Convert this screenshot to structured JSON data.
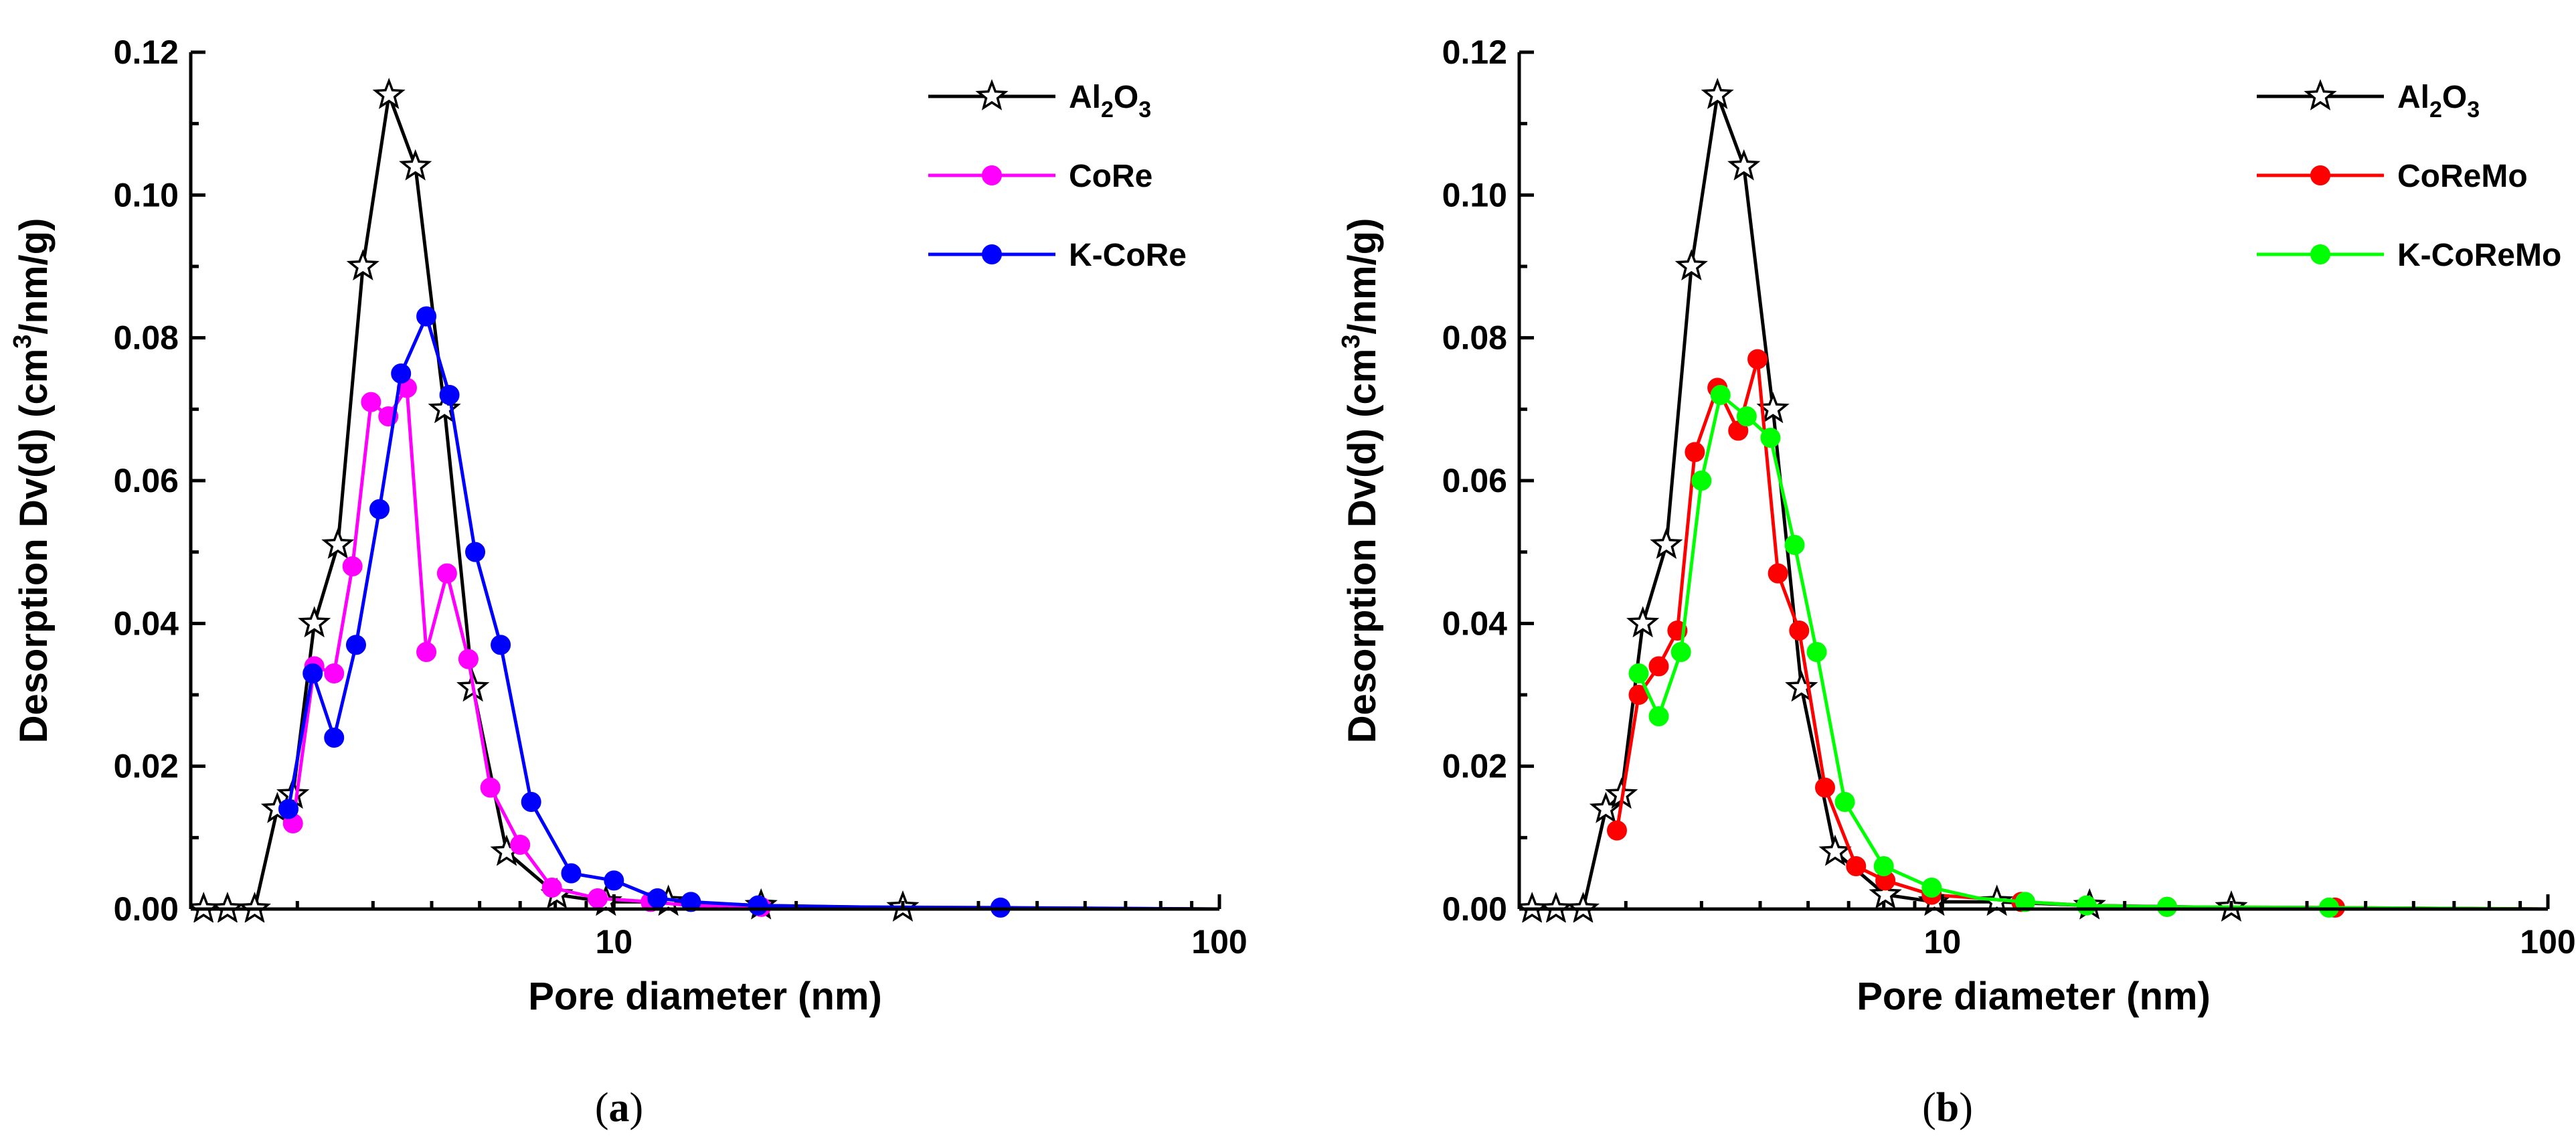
{
  "chart_data": [
    {
      "type": "line",
      "panel_label": "(a)",
      "panel_letter": "a",
      "xlabel": "Pore diameter (nm)",
      "ylabel": "Desorption Dv(d) (cm3/nm/g)",
      "ylabel_parts": {
        "before": "Desorption Dv(d) (cm",
        "sup": "3",
        "after": "/nm/g)"
      },
      "xscale": "log",
      "xlim": [
        2,
        100
      ],
      "ylim": [
        0,
        0.12
      ],
      "xticks": [
        {
          "value": 10,
          "label": "10"
        },
        {
          "value": 100,
          "label": "100"
        }
      ],
      "yticks": [
        {
          "value": 0.0,
          "label": "0.00"
        },
        {
          "value": 0.02,
          "label": "0.02"
        },
        {
          "value": 0.04,
          "label": "0.04"
        },
        {
          "value": 0.06,
          "label": "0.06"
        },
        {
          "value": 0.08,
          "label": "0.08"
        },
        {
          "value": 0.1,
          "label": "0.10"
        },
        {
          "value": 0.12,
          "label": "0.12"
        }
      ],
      "legend_position": "top-right",
      "series": [
        {
          "name": "Al2O3",
          "label_parts": {
            "t1": "Al",
            "s1": "2",
            "t2": "O",
            "s2": "3"
          },
          "color": "#000000",
          "marker": "star",
          "x": [
            2.1,
            2.3,
            2.55,
            2.78,
            2.95,
            3.2,
            3.5,
            3.85,
            4.25,
            4.7,
            5.25,
            5.85,
            6.65,
            8.05,
            9.7,
            12.3,
            17.5,
            30,
            60,
            100
          ],
          "y": [
            0.0,
            0.0,
            0.0,
            0.014,
            0.016,
            0.04,
            0.051,
            0.09,
            0.114,
            0.104,
            0.07,
            0.031,
            0.008,
            0.002,
            0.001,
            0.001,
            0.0005,
            0.0002,
            0.0001,
            0.0
          ],
          "markers": [
            true,
            true,
            true,
            true,
            true,
            true,
            true,
            true,
            true,
            true,
            true,
            true,
            true,
            true,
            true,
            true,
            true,
            true,
            false,
            false
          ]
        },
        {
          "name": "CoRe",
          "label_parts": {
            "t1": "CoRe"
          },
          "color": "#ff00ff",
          "marker": "circle",
          "x": [
            2.95,
            3.2,
            3.45,
            3.7,
            3.97,
            4.24,
            4.55,
            4.9,
            5.3,
            5.75,
            6.25,
            7.0,
            7.9,
            9.4,
            11.5,
            13.4,
            17.5,
            24,
            40,
            100
          ],
          "y": [
            0.012,
            0.034,
            0.033,
            0.048,
            0.071,
            0.069,
            0.073,
            0.036,
            0.047,
            0.035,
            0.017,
            0.009,
            0.003,
            0.0015,
            0.001,
            0.0005,
            0.0003,
            0.0002,
            0.0,
            0.0
          ],
          "markers": [
            true,
            true,
            true,
            true,
            true,
            true,
            true,
            true,
            true,
            true,
            true,
            true,
            true,
            true,
            true,
            false,
            true,
            false,
            false,
            false
          ]
        },
        {
          "name": "K-CoRe",
          "label_parts": {
            "t1": "K-CoRe"
          },
          "color": "#0000ff",
          "marker": "circle",
          "x": [
            2.9,
            3.18,
            3.45,
            3.75,
            4.1,
            4.45,
            4.9,
            5.35,
            5.9,
            6.5,
            7.3,
            8.5,
            10.0,
            11.8,
            13.4,
            17.3,
            23.5,
            43.5,
            100
          ],
          "y": [
            0.014,
            0.033,
            0.024,
            0.037,
            0.056,
            0.075,
            0.083,
            0.072,
            0.05,
            0.037,
            0.015,
            0.005,
            0.004,
            0.0015,
            0.001,
            0.0005,
            0.0003,
            0.0002,
            0.0
          ],
          "markers": [
            true,
            true,
            true,
            true,
            true,
            true,
            true,
            true,
            true,
            true,
            true,
            true,
            true,
            true,
            true,
            true,
            false,
            true,
            false
          ]
        }
      ]
    },
    {
      "type": "line",
      "panel_label": "(b)",
      "panel_letter": "b",
      "xlabel": "Pore diameter (nm)",
      "ylabel": "Desorption Dv(d) (cm3/nm/g)",
      "ylabel_parts": {
        "before": "Desorption Dv(d) (cm",
        "sup": "3",
        "after": "/nm/g)"
      },
      "xscale": "log",
      "xlim": [
        2,
        100
      ],
      "ylim": [
        0,
        0.12
      ],
      "xticks": [
        {
          "value": 10,
          "label": "10"
        },
        {
          "value": 100,
          "label": "100"
        }
      ],
      "yticks": [
        {
          "value": 0.0,
          "label": "0.00"
        },
        {
          "value": 0.02,
          "label": "0.02"
        },
        {
          "value": 0.04,
          "label": "0.04"
        },
        {
          "value": 0.06,
          "label": "0.06"
        },
        {
          "value": 0.08,
          "label": "0.08"
        },
        {
          "value": 0.1,
          "label": "0.10"
        },
        {
          "value": 0.12,
          "label": "0.12"
        }
      ],
      "legend_position": "top-right",
      "series": [
        {
          "name": "Al2O3",
          "label_parts": {
            "t1": "Al",
            "s1": "2",
            "t2": "O",
            "s2": "3"
          },
          "color": "#000000",
          "marker": "star",
          "x": [
            2.1,
            2.3,
            2.55,
            2.78,
            2.95,
            3.2,
            3.5,
            3.85,
            4.25,
            4.7,
            5.25,
            5.85,
            6.65,
            8.05,
            9.7,
            12.3,
            17.5,
            30,
            60,
            100
          ],
          "y": [
            0.0,
            0.0,
            0.0,
            0.014,
            0.016,
            0.04,
            0.051,
            0.09,
            0.114,
            0.104,
            0.07,
            0.031,
            0.008,
            0.002,
            0.001,
            0.001,
            0.0005,
            0.0002,
            0.0001,
            0.0
          ],
          "markers": [
            true,
            true,
            true,
            true,
            true,
            true,
            true,
            true,
            true,
            true,
            true,
            true,
            true,
            true,
            true,
            true,
            true,
            true,
            false,
            false
          ]
        },
        {
          "name": "CoReMo",
          "label_parts": {
            "t1": "CoReMo"
          },
          "color": "#ff0000",
          "marker": "circle",
          "x": [
            2.9,
            3.15,
            3.4,
            3.65,
            3.9,
            4.25,
            4.6,
            4.95,
            5.35,
            5.8,
            6.4,
            7.2,
            8.05,
            9.6,
            11.6,
            13.5,
            17.5,
            23.5,
            44.5,
            100
          ],
          "y": [
            0.011,
            0.03,
            0.034,
            0.039,
            0.064,
            0.073,
            0.067,
            0.077,
            0.047,
            0.039,
            0.017,
            0.006,
            0.004,
            0.002,
            0.0015,
            0.001,
            0.0005,
            0.0003,
            0.0002,
            0.0
          ],
          "markers": [
            true,
            true,
            true,
            true,
            true,
            true,
            true,
            true,
            true,
            true,
            true,
            true,
            true,
            true,
            false,
            true,
            false,
            true,
            true,
            false
          ]
        },
        {
          "name": "K-CoReMo",
          "label_parts": {
            "t1": "K-CoReMo"
          },
          "color": "#00ff00",
          "marker": "circle",
          "x": [
            3.15,
            3.4,
            3.7,
            4.0,
            4.3,
            4.75,
            5.2,
            5.7,
            6.2,
            6.9,
            8.0,
            9.6,
            11.5,
            13.7,
            17.3,
            23.5,
            43.5,
            100
          ],
          "y": [
            0.033,
            0.027,
            0.036,
            0.06,
            0.072,
            0.069,
            0.066,
            0.051,
            0.036,
            0.015,
            0.006,
            0.003,
            0.0015,
            0.001,
            0.0005,
            0.0003,
            0.0002,
            0.0
          ],
          "markers": [
            true,
            true,
            true,
            true,
            true,
            true,
            true,
            true,
            true,
            true,
            true,
            true,
            false,
            true,
            true,
            true,
            true,
            false
          ]
        }
      ]
    }
  ]
}
